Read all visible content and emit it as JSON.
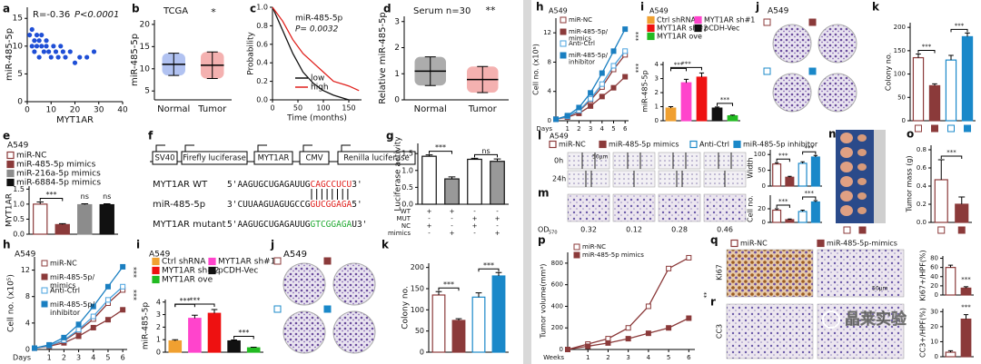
{
  "watermark": "晶莱实验",
  "panels": {
    "a": {
      "label": "a",
      "type": "scatter",
      "r_text": "R=-0.36",
      "p_text": "P<0.0001",
      "xlabel": "MYT1AR",
      "ylabel": "miR-485-5p",
      "x": [
        1,
        2,
        2,
        3,
        3,
        4,
        4,
        5,
        5,
        6,
        6,
        7,
        8,
        8,
        9,
        10,
        11,
        12,
        13,
        14,
        15,
        16,
        18,
        20,
        22,
        25,
        28
      ],
      "y": [
        12,
        10,
        13,
        11,
        9,
        12,
        10,
        11,
        8,
        10,
        12,
        9,
        11,
        10,
        9,
        8,
        10,
        9,
        8,
        10,
        9,
        8,
        9,
        7,
        8,
        8,
        9
      ],
      "color": "#1f4fd6",
      "xlim": [
        0,
        40
      ],
      "ylim": [
        0,
        17
      ],
      "xticks": [
        0,
        10,
        20,
        30,
        40
      ],
      "yticks": [
        0,
        5,
        10,
        15
      ]
    },
    "b": {
      "label": "b",
      "type": "dots",
      "title": "TCGA",
      "sig": "*",
      "ylabel": "miR-485-5p",
      "categories": [
        "Normal",
        "Tumor"
      ],
      "values": [
        11,
        10.8
      ],
      "errors": [
        2.5,
        3
      ],
      "colors": [
        "#1f4fd6",
        "#e0201c"
      ],
      "ylim": [
        3,
        21
      ],
      "yticks": [
        5,
        10,
        15,
        20
      ]
    },
    "c": {
      "label": "c",
      "type": "km",
      "title": "miR-485-5p",
      "p_text": "P= 0.0032",
      "xlabel": "Time (months)",
      "ylabel": "Probability",
      "x": [
        0,
        20,
        40,
        60,
        80,
        100,
        120,
        150,
        170
      ],
      "series": [
        {
          "name": "low",
          "color": "#111111",
          "values": [
            1,
            0.75,
            0.5,
            0.3,
            0.18,
            0.1,
            0.05,
            0,
            0
          ]
        },
        {
          "name": "high",
          "color": "#e0201c",
          "values": [
            1,
            0.85,
            0.65,
            0.5,
            0.4,
            0.3,
            0.2,
            0.15,
            0.1
          ]
        }
      ],
      "xlim": [
        0,
        175
      ],
      "ylim": [
        0,
        1
      ],
      "xticks": [
        0,
        50,
        100,
        150
      ],
      "yticks": [
        {
          "value": 0,
          "label": "0.0"
        },
        0.2,
        0.4,
        0.6,
        0.8,
        {
          "value": 1,
          "label": "1.0"
        }
      ]
    },
    "d": {
      "label": "d",
      "type": "dots",
      "title": "Serum n=30",
      "sig": "**",
      "ylabel": "Relative miR-485-5p",
      "categories": [
        "Normal",
        "Tumor"
      ],
      "values": [
        1.1,
        0.78
      ],
      "errors": [
        0.55,
        0.5
      ],
      "colors": [
        "#111111",
        "#e0201c"
      ],
      "ylim": [
        0,
        3.2
      ],
      "yticks": [
        0,
        1,
        2,
        3
      ]
    },
    "e": {
      "label": "e",
      "type": "bar",
      "title": "A549",
      "ylabel": "MYT1AR",
      "legend": [
        "miR-NC",
        "miR-485-5p mimics",
        "miR-216a-5p mimics",
        "miR-6884-5p mimics"
      ],
      "values": [
        1.0,
        0.32,
        0.98,
        0.98
      ],
      "errors": [
        0.07,
        0.03,
        0.03,
        0.03
      ],
      "colors": [
        "#ffffff",
        "#8b3a3a",
        "#8c8c8c",
        "#111111"
      ],
      "edges": [
        "#8b3a3a",
        "#8b3a3a",
        "#8c8c8c",
        "#111111"
      ],
      "sig": [
        "***",
        "ns",
        "ns"
      ],
      "ylim": [
        0,
        1.6
      ],
      "yticks": [
        {
          "value": 0,
          "label": "0.0"
        },
        0.5,
        {
          "value": 1,
          "label": "1.0"
        },
        1.5
      ]
    },
    "f": {
      "label": "f",
      "type": "diagram",
      "boxes": [
        "SV40",
        "Firefly luciferase",
        "MYT1AR",
        "CMV",
        "Renilla luciferase"
      ],
      "rows": [
        {
          "name": "MYT1AR WT",
          "seq": [
            "5'AAGUGCUGAGAUUG",
            "CAGCCUCU",
            "3'"
          ]
        },
        {
          "name": "miR-485-5p",
          "seq": [
            "3'CUUAAGUAGUGCCG",
            "GUCGGAGA",
            "5'"
          ]
        },
        {
          "name": "MYT1AR mutant",
          "seq": [
            "5'AAGUGCUGAGAUUG",
            "GTCGGAGA",
            "U3'"
          ]
        }
      ]
    },
    "g": {
      "label": "g",
      "type": "bar",
      "ylabel": "Luciferase activity",
      "values": [
        1.42,
        0.75,
        1.33,
        1.27
      ],
      "errors": [
        0.04,
        0.06,
        0.03,
        0.07
      ],
      "colors": [
        "#ffffff",
        "#999999",
        "#ffffff",
        "#999999"
      ],
      "edges": [
        "#111111",
        "#111111",
        "#111111",
        "#111111"
      ],
      "sig": [
        "***",
        "ns"
      ],
      "ylim": [
        0,
        1.8
      ],
      "yticks": [
        {
          "value": 0,
          "label": "0.0"
        },
        0.5,
        {
          "value": 1,
          "label": "1.0"
        },
        1.5
      ],
      "conditions": [
        {
          "name": "WT",
          "marks": [
            "+",
            "+",
            "-",
            "-"
          ]
        },
        {
          "name": "MUT",
          "marks": [
            "-",
            "-",
            "+",
            "+"
          ]
        },
        {
          "name": "NC",
          "marks": [
            "+",
            "-",
            "+",
            "-"
          ]
        },
        {
          "name": "mimics",
          "marks": [
            "-",
            "+",
            "-",
            "+"
          ]
        }
      ]
    },
    "h": {
      "label": "h",
      "type": "line",
      "title": "A549",
      "ylabel": "Cell no. (x10⁵)",
      "xlabel": "Days",
      "sig": [
        "***",
        "***"
      ],
      "x": [
        0,
        1,
        2,
        3,
        4,
        5,
        6
      ],
      "series": [
        {
          "name": "miR-NC",
          "color": "#8b3a3a",
          "open": true,
          "values": [
            0.2,
            0.6,
            1.3,
            2.8,
            4.6,
            7,
            9
          ]
        },
        {
          "name": "miR-485-5p/ mimics",
          "color": "#8b3a3a",
          "open": false,
          "values": [
            0.2,
            0.5,
            1,
            2,
            3.3,
            4.5,
            6
          ]
        },
        {
          "name": "Anti-Ctrl",
          "color": "#4aa3df",
          "open": true,
          "values": [
            0.2,
            0.6,
            1.4,
            3,
            5,
            7.5,
            9.5
          ]
        },
        {
          "name": "miR-485-5p/ inhibitor",
          "color": "#1a7fc1",
          "open": false,
          "values": [
            0.2,
            0.7,
            1.8,
            3.8,
            6.5,
            9.5,
            12.5
          ]
        }
      ],
      "xlim": [
        0,
        6.3
      ],
      "ylim": [
        0,
        14
      ],
      "xticks": [
        1,
        2,
        3,
        4,
        5,
        6
      ],
      "yticks": [
        0,
        4,
        8,
        12
      ]
    },
    "i": {
      "label": "i",
      "type": "bar",
      "title": "A549",
      "ylabel": "miR-485-5p",
      "legend": [
        "Ctrl shRNA",
        "MYT1AR sh#1",
        "MYT1AR sh#2",
        "pCDH-Vec",
        "MYT1AR ove"
      ],
      "values": [
        0.9,
        2.7,
        3.1,
        0.9,
        0.35
      ],
      "errors": [
        0.1,
        0.25,
        0.3,
        0.08,
        0.05
      ],
      "colors": [
        "#f0a030",
        "#ff44cc",
        "#ee1111",
        "#111111",
        "#22bb22"
      ],
      "edges": [
        "#f0a030",
        "#ff44cc",
        "#ee1111",
        "#111111",
        "#22bb22"
      ],
      "sig": [
        "***",
        "***",
        "***"
      ],
      "ylim": [
        0,
        4.2
      ],
      "yticks": [
        0,
        1,
        2,
        3,
        4
      ]
    },
    "j": {
      "label": "j",
      "type": "plates",
      "title": "A549"
    },
    "k": {
      "label": "k",
      "type": "bar",
      "ylabel": "Colony no.",
      "values": [
        135,
        75,
        130,
        180
      ],
      "errors": [
        8,
        4,
        10,
        8
      ],
      "colors": [
        "#ffffff",
        "#8b3a3a",
        "#ffffff",
        "#1a88c9"
      ],
      "edges": [
        "#8b3a3a",
        "#8b3a3a",
        "#1a88c9",
        "#1a88c9"
      ],
      "sig": [
        "***",
        "***"
      ],
      "ylim": [
        0,
        210
      ],
      "yticks": [
        0,
        50,
        100,
        150,
        200
      ]
    },
    "l": {
      "label": "l",
      "type": "bar",
      "title": "A549",
      "ylabel": "Width",
      "times": [
        "0h",
        "24h"
      ],
      "scale": "50μm",
      "legend": [
        "miR-NC",
        "miR-485-5p mimics",
        "Anti-Ctrl",
        "miR-485-5p inhibitor"
      ],
      "values": [
        70,
        28,
        72,
        92
      ],
      "errors": [
        4,
        3,
        5,
        5
      ],
      "colors": [
        "#ffffff",
        "#8b3a3a",
        "#ffffff",
        "#1a88c9"
      ],
      "edges": [
        "#8b3a3a",
        "#8b3a3a",
        "#1a88c9",
        "#1a88c9"
      ],
      "sig": [
        "***",
        "***"
      ],
      "ylim": [
        0,
        115
      ],
      "yticks": [
        0,
        50,
        100
      ]
    },
    "m": {
      "label": "m",
      "type": "bar",
      "ylabel": "Cell no.",
      "od_label": "OD",
      "od_sub": "570",
      "od": [
        0.32,
        0.12,
        0.28,
        0.46
      ],
      "values": [
        18,
        4,
        16,
        30
      ],
      "errors": [
        2,
        1,
        2,
        2
      ],
      "colors": [
        "#ffffff",
        "#8b3a3a",
        "#ffffff",
        "#1a88c9"
      ],
      "edges": [
        "#8b3a3a",
        "#8b3a3a",
        "#1a88c9",
        "#1a88c9"
      ],
      "sig": [
        "***",
        "***"
      ],
      "ylim": [
        0,
        40
      ],
      "yticks": [
        0,
        20
      ]
    },
    "n": {
      "label": "n",
      "type": "tumors"
    },
    "o": {
      "label": "o",
      "type": "bar",
      "ylabel": "Tumor mass (g)",
      "values": [
        0.47,
        0.2
      ],
      "errors": [
        0.22,
        0.08
      ],
      "colors": [
        "#ffffff",
        "#8b3a3a"
      ],
      "edges": [
        "#8b3a3a",
        "#8b3a3a"
      ],
      "sig": [
        "***"
      ],
      "ylim": [
        0,
        0.85
      ],
      "yticks": [
        {
          "value": 0,
          "label": "0.0"
        },
        0.2,
        0.4,
        0.6,
        0.8
      ]
    },
    "p": {
      "label": "p",
      "type": "line",
      "ylabel": "Tumor volume(mm³)",
      "xlabel": "Weeks",
      "sig": [
        "**"
      ],
      "x": [
        0,
        1,
        2,
        3,
        4,
        5,
        6
      ],
      "series": [
        {
          "name": "miR-NC",
          "color": "#8b3a3a",
          "open": true,
          "values": [
            0,
            50,
            100,
            200,
            400,
            750,
            850
          ]
        },
        {
          "name": "miR-485-5p mimics",
          "color": "#8b3a3a",
          "open": false,
          "values": [
            0,
            30,
            60,
            100,
            150,
            200,
            290
          ]
        }
      ],
      "xlim": [
        0,
        6.3
      ],
      "ylim": [
        0,
        900
      ],
      "xticks": [
        1,
        2,
        3,
        4,
        5,
        6
      ],
      "yticks": [
        0,
        200,
        400,
        600,
        800
      ]
    },
    "q": {
      "label": "q",
      "type": "bar",
      "row": "Ki67",
      "scale": "50μm",
      "ylabel": "Ki67+/HPF(%)",
      "legend": [
        "miR-NC",
        "miR-485-5p-mimics"
      ],
      "values": [
        60,
        15
      ],
      "errors": [
        5,
        3
      ],
      "colors": [
        "#ffffff",
        "#8b3a3a"
      ],
      "edges": [
        "#8b3a3a",
        "#8b3a3a"
      ],
      "sig": [
        "***"
      ],
      "ylim": [
        0,
        85
      ],
      "yticks": [
        0,
        20,
        40,
        60,
        80
      ]
    },
    "r": {
      "label": "r",
      "type": "bar",
      "row": "CC3",
      "ylabel": "CC3+/HPF(%)",
      "values": [
        3,
        25
      ],
      "errors": [
        1,
        3
      ],
      "colors": [
        "#ffffff",
        "#8b3a3a"
      ],
      "edges": [
        "#8b3a3a",
        "#8b3a3a"
      ],
      "sig": [
        "***"
      ],
      "ylim": [
        0,
        32
      ],
      "yticks": [
        0,
        10,
        20,
        30
      ]
    }
  }
}
